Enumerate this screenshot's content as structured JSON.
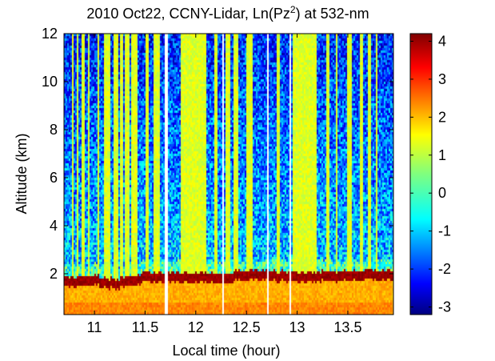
{
  "chart_data": {
    "type": "heatmap",
    "title_main": "2010 Oct22, CCNY-Lidar, Ln(Pz",
    "title_sup": "2",
    "title_tail": ") at 532-nm",
    "xlabel": "Local time (hour)",
    "ylabel": "Altitude (km)",
    "xlim": [
      10.7,
      13.95
    ],
    "ylim": [
      0.3,
      12
    ],
    "x_ticks": [
      11,
      11.5,
      12,
      12.5,
      13,
      13.5
    ],
    "x_tick_labels": [
      "11",
      "11.5",
      "12",
      "12.5",
      "13",
      "13.5"
    ],
    "y_ticks": [
      2,
      4,
      6,
      8,
      10,
      12
    ],
    "y_tick_labels": [
      "2",
      "4",
      "6",
      "8",
      "10",
      "12"
    ],
    "colorbar": {
      "range": [
        -3.2,
        4.2
      ],
      "ticks": [
        -3,
        -2,
        -1,
        0,
        1,
        2,
        3,
        4
      ],
      "tick_labels": [
        "-3",
        "-2",
        "-1",
        "0",
        "1",
        "2",
        "3",
        "4"
      ],
      "colormap": "jet"
    },
    "boundary_layer_top_km": {
      "times": [
        10.75,
        11.0,
        11.2,
        11.5,
        11.75,
        12.0,
        12.25,
        12.5,
        12.75,
        13.0,
        13.25,
        13.5,
        13.75,
        13.95
      ],
      "altitudes": [
        1.7,
        1.8,
        1.6,
        1.9,
        1.9,
        1.9,
        1.85,
        2.0,
        1.95,
        1.9,
        1.95,
        1.95,
        2.0,
        2.0
      ]
    },
    "cloud_or_high_signal_columns_hours": [
      [
        10.78,
        10.8
      ],
      [
        10.82,
        10.84
      ],
      [
        10.88,
        10.9
      ],
      [
        10.93,
        10.95
      ],
      [
        11.03,
        11.05
      ],
      [
        11.1,
        11.15
      ],
      [
        11.19,
        11.23
      ],
      [
        11.25,
        11.28
      ],
      [
        11.3,
        11.35
      ],
      [
        11.37,
        11.42
      ],
      [
        11.5,
        11.53
      ],
      [
        11.58,
        11.64
      ],
      [
        11.85,
        12.1
      ],
      [
        12.18,
        12.22
      ],
      [
        12.3,
        12.34
      ],
      [
        12.38,
        12.42
      ],
      [
        12.5,
        12.56
      ],
      [
        12.8,
        12.83
      ],
      [
        12.95,
        13.2
      ],
      [
        13.28,
        13.32
      ],
      [
        13.38,
        13.4
      ],
      [
        13.5,
        13.54
      ],
      [
        13.62,
        13.65
      ],
      [
        13.7,
        13.73
      ],
      [
        13.78,
        13.8
      ]
    ],
    "data_gaps_hours": [
      [
        11.7,
        11.73
      ],
      [
        12.26,
        12.28
      ],
      [
        12.7,
        12.72
      ],
      [
        12.93,
        12.94
      ]
    ]
  }
}
